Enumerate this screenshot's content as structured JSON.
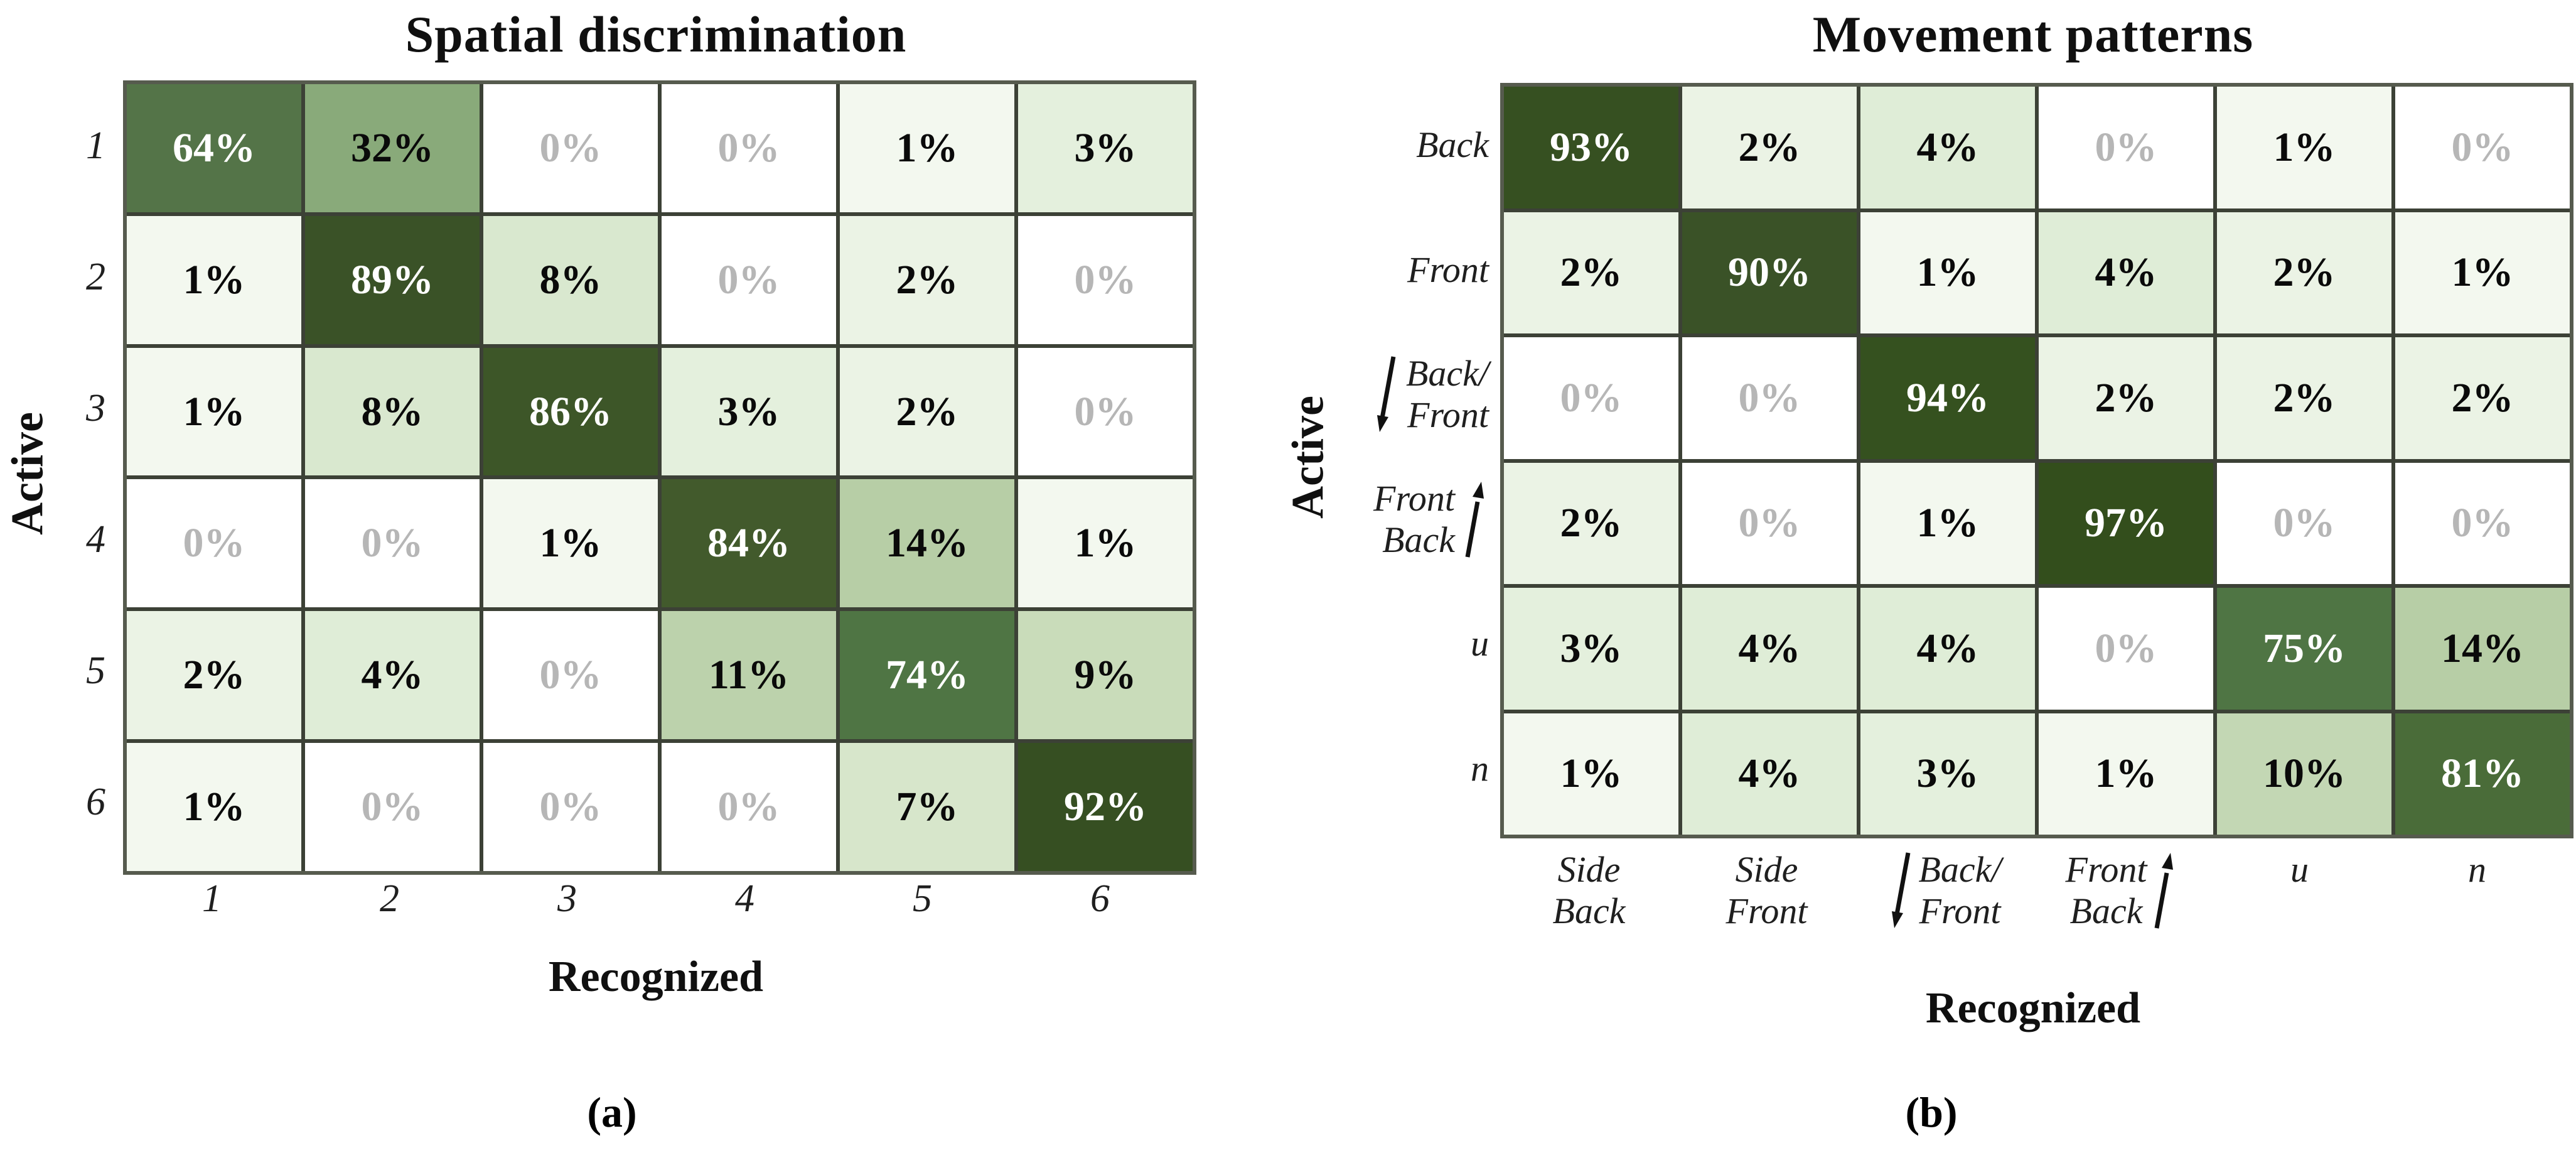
{
  "figure": {
    "captions": {
      "a": "(a)",
      "b": "(b)"
    }
  },
  "style": {
    "grid_line_color": "#3c4136",
    "grid_border_color": "#565b4e",
    "value_text_dark": "#0a0a0a",
    "value_text_zero": "#b6b6b6",
    "value_text_light": "#ffffff",
    "light_text_min_value": 64,
    "arrow_color": "#111111",
    "value_colors": {
      "0": "#ffffff",
      "1": "#f3f8ef",
      "2": "#ebf3e5",
      "3": "#e4f0dd",
      "4": "#dfedd7",
      "7": "#d7e6cb",
      "8": "#d9e8cf",
      "9": "#c9dcba",
      "10": "#c3d7b4",
      "11": "#bcd2ac",
      "14": "#b7cea6",
      "32": "#89aa7a",
      "64": "#547448",
      "74": "#4f7544",
      "75": "#4f7544",
      "81": "#4a6c39",
      "84": "#425a2c",
      "86": "#3d5628",
      "89": "#3a5227",
      "90": "#3a5227",
      "92": "#364f22",
      "93": "#365021",
      "94": "#35511f",
      "97": "#334e1c"
    }
  },
  "chart_data": [
    {
      "type": "heatmap",
      "panel": "a",
      "title": "Spatial discrimination",
      "xlabel": "Recognized",
      "ylabel": "Active",
      "unit": "%",
      "legend": "none",
      "grid": "on",
      "x_categories": [
        {
          "lines": [
            "1"
          ]
        },
        {
          "lines": [
            "2"
          ]
        },
        {
          "lines": [
            "3"
          ]
        },
        {
          "lines": [
            "4"
          ]
        },
        {
          "lines": [
            "5"
          ]
        },
        {
          "lines": [
            "6"
          ]
        }
      ],
      "y_categories": [
        {
          "lines": [
            "1"
          ]
        },
        {
          "lines": [
            "2"
          ]
        },
        {
          "lines": [
            "3"
          ]
        },
        {
          "lines": [
            "4"
          ]
        },
        {
          "lines": [
            "5"
          ]
        },
        {
          "lines": [
            "6"
          ]
        }
      ],
      "values_percent": [
        [
          64,
          32,
          0,
          0,
          1,
          3
        ],
        [
          1,
          89,
          8,
          0,
          2,
          0
        ],
        [
          1,
          8,
          86,
          3,
          2,
          0
        ],
        [
          0,
          0,
          1,
          84,
          14,
          1
        ],
        [
          2,
          4,
          0,
          11,
          74,
          9
        ],
        [
          1,
          0,
          0,
          0,
          7,
          92
        ]
      ],
      "caption": "(a)"
    },
    {
      "type": "heatmap",
      "panel": "b",
      "title": "Movement patterns",
      "xlabel": "Recognized",
      "ylabel": "Active",
      "unit": "%",
      "legend": "none",
      "grid": "on",
      "x_categories": [
        {
          "lines": [
            "Side",
            "Back"
          ]
        },
        {
          "lines": [
            "Side",
            "Front"
          ]
        },
        {
          "lines": [
            "Back/",
            "Front"
          ],
          "arrow": "down",
          "arrow_side": "left"
        },
        {
          "lines": [
            "Front",
            "Back"
          ],
          "arrow": "up",
          "arrow_side": "right"
        },
        {
          "lines": [
            "u"
          ]
        },
        {
          "lines": [
            "n"
          ]
        }
      ],
      "y_categories": [
        {
          "lines": [
            "Back"
          ]
        },
        {
          "lines": [
            "Front"
          ]
        },
        {
          "lines": [
            "Back/",
            "Front"
          ],
          "arrow": "down",
          "arrow_side": "left"
        },
        {
          "lines": [
            "Front",
            "Back"
          ],
          "arrow": "up",
          "arrow_side": "right"
        },
        {
          "lines": [
            "u"
          ]
        },
        {
          "lines": [
            "n"
          ]
        }
      ],
      "values_percent": [
        [
          93,
          2,
          4,
          0,
          1,
          0
        ],
        [
          2,
          90,
          1,
          4,
          2,
          1
        ],
        [
          0,
          0,
          94,
          2,
          2,
          2
        ],
        [
          2,
          0,
          1,
          97,
          0,
          0
        ],
        [
          3,
          4,
          4,
          0,
          75,
          14
        ],
        [
          1,
          4,
          3,
          1,
          10,
          81
        ]
      ],
      "caption": "(b)"
    }
  ]
}
